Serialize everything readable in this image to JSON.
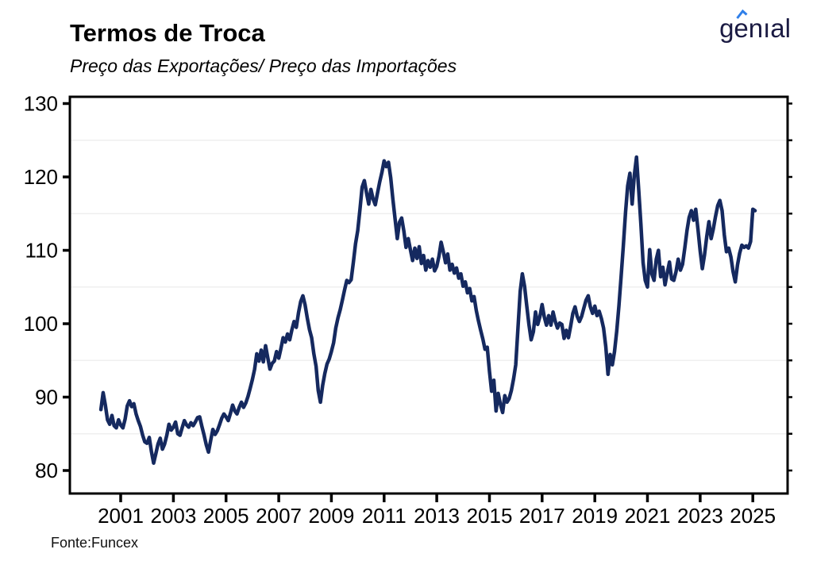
{
  "header": {
    "title": "Termos de Troca",
    "subtitle": "Preço das Exportações/ Preço das Importações",
    "logo_text": "genıal"
  },
  "footer": {
    "source": "Fonte:Funcex"
  },
  "colors": {
    "line": "#15295F",
    "logo_navy": "#1B1B43",
    "logo_accent": "#2F7FE9",
    "grid": "#EFEFEF",
    "axis": "#000000"
  },
  "chart_data": {
    "type": "line",
    "title": "Termos de Troca",
    "subtitle": "Preço das Exportações/ Preço das Importações",
    "source": "Fonte:Funcex",
    "xlabel": "",
    "ylabel": "",
    "legend": "none",
    "grid": "minor-horizontal-only",
    "x_ticks": [
      2001,
      2003,
      2005,
      2007,
      2009,
      2011,
      2013,
      2015,
      2017,
      2019,
      2021,
      2023,
      2025
    ],
    "y_ticks": [
      80,
      90,
      100,
      110,
      120,
      130
    ],
    "y_minor_grid": [
      85,
      95,
      105,
      115,
      125
    ],
    "y_right_ticks": [
      80,
      85,
      90,
      95,
      100,
      105,
      110,
      115,
      120,
      125,
      130
    ],
    "xlim": [
      1999.07,
      2026.32
    ],
    "ylim": [
      76.86,
      130.92
    ],
    "series": [
      {
        "name": "Termos de Troca (Preço das Exportações / Preço das Importações)",
        "start_year": 2000.25,
        "step_years": 0.0833333,
        "values": [
          88.3,
          90.6,
          88.9,
          86.9,
          86.3,
          87.5,
          86.1,
          85.8,
          86.9,
          86.2,
          85.8,
          87.0,
          88.8,
          89.5,
          88.7,
          89.1,
          87.7,
          86.8,
          86.0,
          84.8,
          83.9,
          83.7,
          84.5,
          82.6,
          81.0,
          82.3,
          83.6,
          84.4,
          82.9,
          83.6,
          84.8,
          86.3,
          85.5,
          85.9,
          86.6,
          85.0,
          84.8,
          85.8,
          86.8,
          86.2,
          85.9,
          86.5,
          86.1,
          86.6,
          87.2,
          87.3,
          86.0,
          84.8,
          83.5,
          82.5,
          84.1,
          85.6,
          84.9,
          85.4,
          86.2,
          87.1,
          87.7,
          87.3,
          86.8,
          87.8,
          88.9,
          88.1,
          87.7,
          88.6,
          89.3,
          88.6,
          89.2,
          90.1,
          91.2,
          92.4,
          93.8,
          95.9,
          94.9,
          96.4,
          94.8,
          97.0,
          95.4,
          93.8,
          94.6,
          94.9,
          96.2,
          95.3,
          96.6,
          98.1,
          97.5,
          98.6,
          97.8,
          99.2,
          100.3,
          99.5,
          101.5,
          103.0,
          103.8,
          102.6,
          100.8,
          99.2,
          98.1,
          95.9,
          94.2,
          90.9,
          89.3,
          91.6,
          93.2,
          94.5,
          95.2,
          96.2,
          97.4,
          99.4,
          100.8,
          101.9,
          103.2,
          104.6,
          105.9,
          105.6,
          106.0,
          108.4,
          110.9,
          112.7,
          115.6,
          118.6,
          119.5,
          117.8,
          116.3,
          118.3,
          117.0,
          116.2,
          117.8,
          119.3,
          120.6,
          122.2,
          121.4,
          122.0,
          119.9,
          117.0,
          114.3,
          111.6,
          113.8,
          114.4,
          112.6,
          110.4,
          111.6,
          110.1,
          108.6,
          110.3,
          108.9,
          110.5,
          108.2,
          109.3,
          107.3,
          108.6,
          107.7,
          108.8,
          107.2,
          107.8,
          109.2,
          111.1,
          109.8,
          108.3,
          109.5,
          107.3,
          108.1,
          106.9,
          107.6,
          106.2,
          106.8,
          105.1,
          105.7,
          104.2,
          104.8,
          103.1,
          103.7,
          101.8,
          100.4,
          99.1,
          97.9,
          96.5,
          96.8,
          93.5,
          90.8,
          92.3,
          88.1,
          90.5,
          89.0,
          87.9,
          90.2,
          89.3,
          89.8,
          90.9,
          92.5,
          94.4,
          99.4,
          104.4,
          106.8,
          105.1,
          102.4,
          99.9,
          97.8,
          98.9,
          101.6,
          99.9,
          101.0,
          102.6,
          100.9,
          99.8,
          101.1,
          99.8,
          101.6,
          100.3,
          99.4,
          100.1,
          99.9,
          98.0,
          99.1,
          98.1,
          99.7,
          101.4,
          102.3,
          101.0,
          100.3,
          101.0,
          102.1,
          103.2,
          103.8,
          102.3,
          101.4,
          102.4,
          101.1,
          101.7,
          100.7,
          99.4,
          96.9,
          93.1,
          95.8,
          94.4,
          96.2,
          99.0,
          102.5,
          106.4,
          110.6,
          115.2,
          118.8,
          120.5,
          116.3,
          120.2,
          122.7,
          118.2,
          113.6,
          108.3,
          105.9,
          105.0,
          110.1,
          106.8,
          105.9,
          108.8,
          110.0,
          106.4,
          107.7,
          105.3,
          106.9,
          108.4,
          106.1,
          105.9,
          107.1,
          108.8,
          107.3,
          108.1,
          110.3,
          112.7,
          114.5,
          115.4,
          114.1,
          115.6,
          112.9,
          109.9,
          107.5,
          109.4,
          111.9,
          113.9,
          111.6,
          112.9,
          114.6,
          116.1,
          116.8,
          115.4,
          112.1,
          109.8,
          110.3,
          109.1,
          107.1,
          105.7,
          108.0,
          109.6,
          110.7,
          110.4,
          110.6,
          110.3,
          111.2,
          115.6,
          115.4
        ]
      }
    ]
  }
}
